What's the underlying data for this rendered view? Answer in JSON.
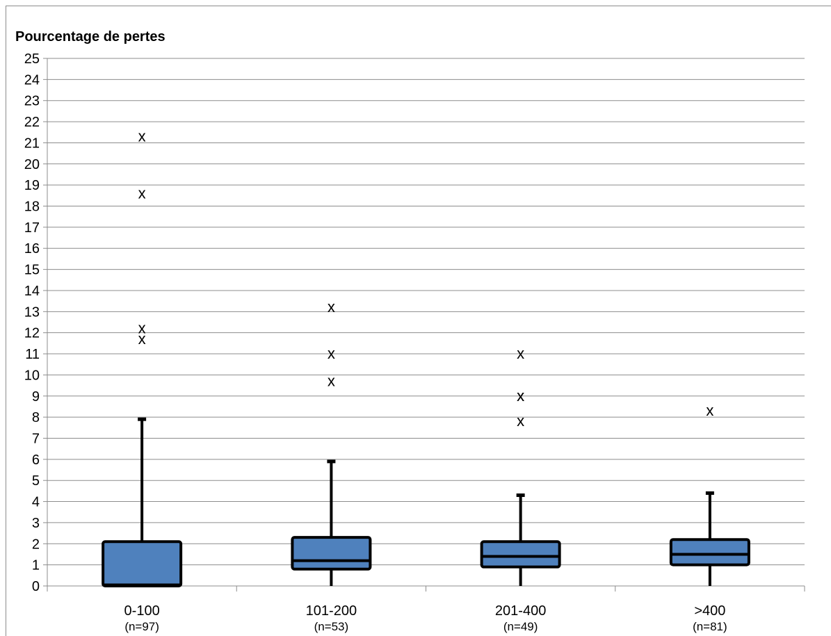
{
  "chart_data": {
    "type": "boxplot",
    "title": "Pourcentage de pertes",
    "xlabel": "",
    "ylabel": "",
    "ylim": [
      0,
      25
    ],
    "yticks": [
      0,
      1,
      2,
      3,
      4,
      5,
      6,
      7,
      8,
      9,
      10,
      11,
      12,
      13,
      14,
      15,
      16,
      17,
      18,
      19,
      20,
      21,
      22,
      23,
      24,
      25
    ],
    "grid": "horizontal",
    "box_color": "#4f81bd",
    "outlier_marker": "x",
    "categories": [
      "0-100",
      "101-200",
      "201-400",
      ">400"
    ],
    "counts": [
      "(n=97)",
      "(n=53)",
      "(n=49)",
      "(n=81)"
    ],
    "boxes": [
      {
        "min": 0,
        "q1": 0,
        "median": 0.05,
        "q3": 2.1,
        "max": 7.9,
        "outliers": [
          21.3,
          18.6,
          12.2,
          11.7
        ]
      },
      {
        "min": 0,
        "q1": 0.8,
        "median": 1.2,
        "q3": 2.3,
        "max": 5.9,
        "outliers": [
          13.2,
          11.0,
          9.7
        ]
      },
      {
        "min": 0,
        "q1": 0.9,
        "median": 1.4,
        "q3": 2.1,
        "max": 4.3,
        "outliers": [
          11.0,
          9.0,
          9.0,
          7.8
        ]
      },
      {
        "min": 0,
        "q1": 1.0,
        "median": 1.5,
        "q3": 2.2,
        "max": 4.4,
        "outliers": [
          8.3
        ]
      }
    ]
  }
}
